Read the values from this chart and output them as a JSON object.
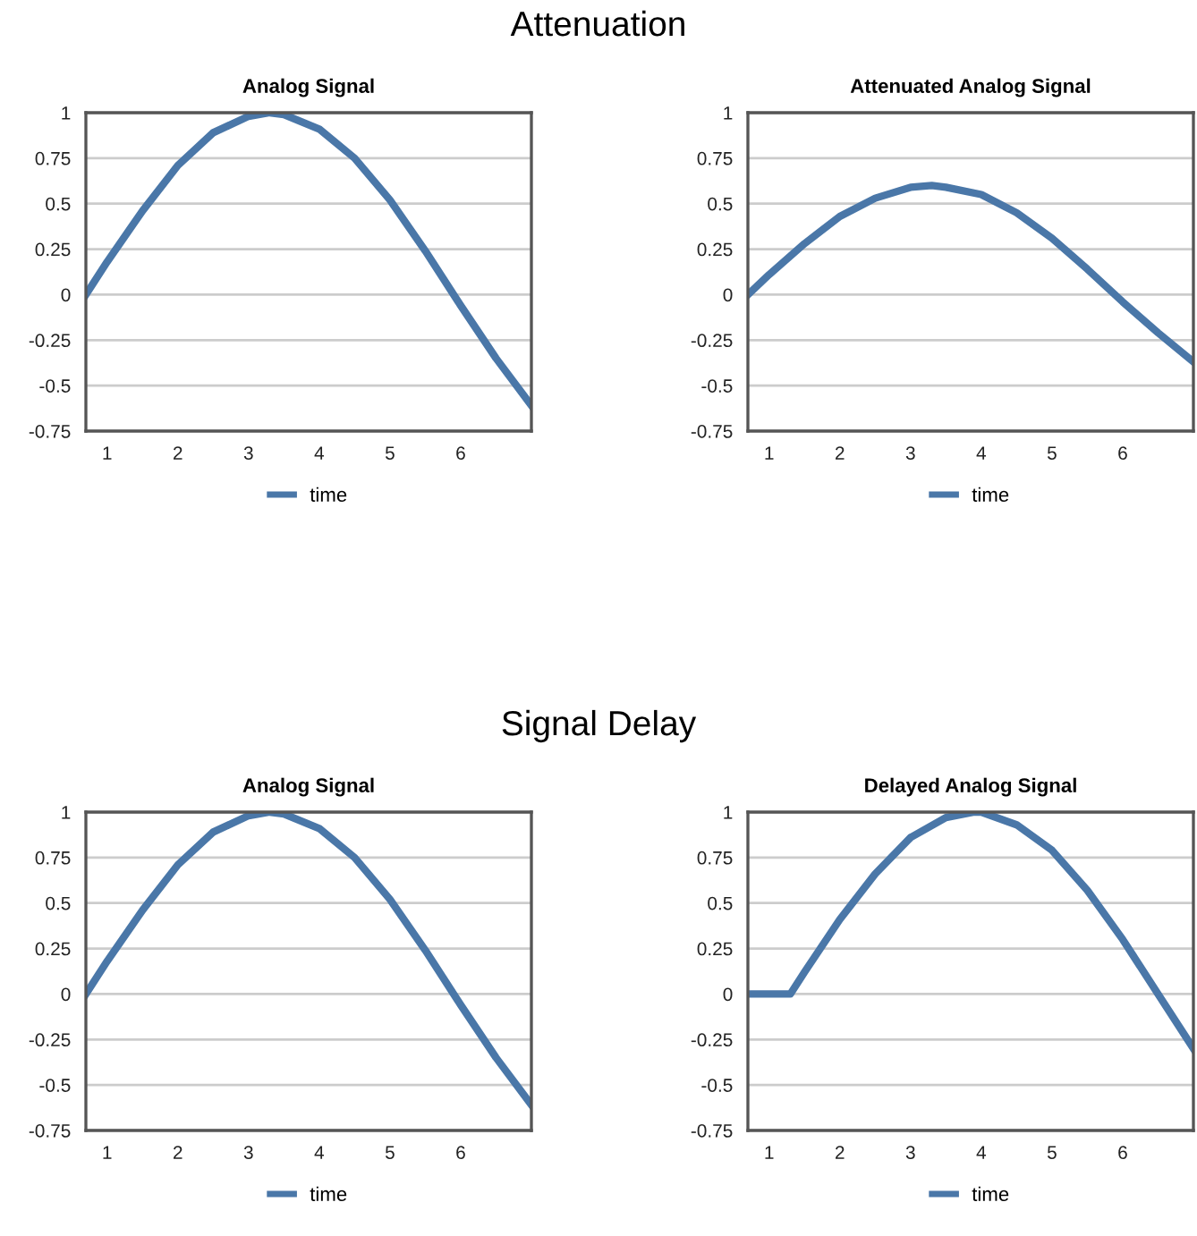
{
  "chart_data": [
    {
      "type": "line",
      "title": "Analog Signal",
      "annotations": [
        "Attenuation"
      ],
      "x": [
        0.7,
        1.0,
        1.5,
        2.0,
        2.5,
        3.0,
        3.3,
        3.5,
        4.0,
        4.5,
        5.0,
        5.5,
        6.0,
        6.5,
        7.0
      ],
      "series": [
        {
          "name": "time",
          "color": "#4a77a8",
          "values": [
            0,
            0.18,
            0.46,
            0.71,
            0.89,
            0.98,
            1.0,
            0.99,
            0.91,
            0.75,
            0.52,
            0.24,
            -0.06,
            -0.35,
            -0.61
          ]
        }
      ],
      "xlim": [
        0.7,
        7.0
      ],
      "xticks": [
        1,
        2,
        3,
        4,
        5,
        6
      ],
      "ylim": [
        -0.75,
        1
      ],
      "yticks": [
        -0.75,
        -0.5,
        -0.25,
        0,
        0.25,
        0.5,
        0.75,
        1
      ],
      "grid": "y",
      "legend": "bottom",
      "marker": "none",
      "line_style": "solid"
    },
    {
      "type": "line",
      "title": "Attenuated Analog Signal",
      "x": [
        0.7,
        1.0,
        1.5,
        2.0,
        2.5,
        3.0,
        3.3,
        3.5,
        4.0,
        4.5,
        5.0,
        5.5,
        6.0,
        6.5,
        7.0
      ],
      "series": [
        {
          "name": "time",
          "color": "#4a77a8",
          "values": [
            0,
            0.11,
            0.28,
            0.43,
            0.53,
            0.59,
            0.6,
            0.59,
            0.55,
            0.45,
            0.31,
            0.14,
            -0.04,
            -0.21,
            -0.37
          ]
        }
      ],
      "xlim": [
        0.7,
        7.0
      ],
      "xticks": [
        1,
        2,
        3,
        4,
        5,
        6
      ],
      "ylim": [
        -0.75,
        1
      ],
      "yticks": [
        -0.75,
        -0.5,
        -0.25,
        0,
        0.25,
        0.5,
        0.75,
        1
      ],
      "grid": "y",
      "legend": "bottom",
      "marker": "none",
      "line_style": "solid"
    },
    {
      "type": "line",
      "title": "Analog Signal",
      "annotations": [
        "Signal Delay"
      ],
      "x": [
        0.7,
        1.0,
        1.5,
        2.0,
        2.5,
        3.0,
        3.3,
        3.5,
        4.0,
        4.5,
        5.0,
        5.5,
        6.0,
        6.5,
        7.0
      ],
      "series": [
        {
          "name": "time",
          "color": "#4a77a8",
          "values": [
            0,
            0.18,
            0.46,
            0.71,
            0.89,
            0.98,
            1.0,
            0.99,
            0.91,
            0.75,
            0.52,
            0.24,
            -0.06,
            -0.35,
            -0.61
          ]
        }
      ],
      "xlim": [
        0.7,
        7.0
      ],
      "xticks": [
        1,
        2,
        3,
        4,
        5,
        6
      ],
      "ylim": [
        -0.75,
        1
      ],
      "yticks": [
        -0.75,
        -0.5,
        -0.25,
        0,
        0.25,
        0.5,
        0.75,
        1
      ],
      "grid": "y",
      "legend": "bottom",
      "marker": "none",
      "line_style": "solid"
    },
    {
      "type": "line",
      "title": "Delayed Analog Signal",
      "x": [
        0.7,
        1.3,
        1.5,
        2.0,
        2.5,
        3.0,
        3.5,
        3.9,
        4.0,
        4.5,
        5.0,
        5.5,
        6.0,
        6.5,
        7.0
      ],
      "series": [
        {
          "name": "time",
          "color": "#4a77a8",
          "values": [
            0,
            0,
            0.12,
            0.41,
            0.66,
            0.86,
            0.97,
            1.0,
            1.0,
            0.93,
            0.79,
            0.57,
            0.3,
            0.0,
            -0.3
          ]
        }
      ],
      "xlim": [
        0.7,
        7.0
      ],
      "xticks": [
        1,
        2,
        3,
        4,
        5,
        6
      ],
      "ylim": [
        -0.75,
        1
      ],
      "yticks": [
        -0.75,
        -0.5,
        -0.25,
        0,
        0.25,
        0.5,
        0.75,
        1
      ],
      "grid": "y",
      "legend": "bottom",
      "marker": "none",
      "line_style": "solid"
    }
  ]
}
